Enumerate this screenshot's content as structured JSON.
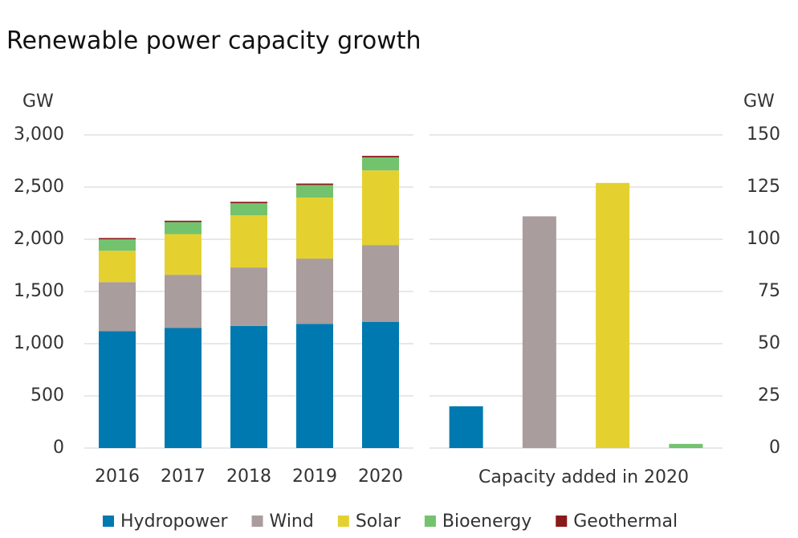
{
  "chart_data": [
    {
      "type": "stacked-bar",
      "title": "Renewable power capacity growth",
      "ylabel": "GW",
      "categories": [
        "2016",
        "2017",
        "2018",
        "2019",
        "2020"
      ],
      "series": [
        {
          "name": "Hydropower",
          "color": "#0079b0",
          "values": [
            1120,
            1150,
            1170,
            1190,
            1210
          ]
        },
        {
          "name": "Wind",
          "color": "#aa9d9e",
          "values": [
            470,
            510,
            560,
            625,
            735
          ]
        },
        {
          "name": "Solar",
          "color": "#e4d130",
          "values": [
            300,
            390,
            500,
            585,
            715
          ]
        },
        {
          "name": "Bioenergy",
          "color": "#73c26d",
          "values": [
            110,
            115,
            115,
            120,
            125
          ]
        },
        {
          "name": "Geothermal",
          "color": "#8b1a1a",
          "values": [
            12,
            13,
            14,
            14,
            14
          ]
        }
      ],
      "ylim": [
        0,
        3000
      ],
      "yticks": [
        0,
        500,
        {
          "value": 1000,
          "label": "1,000"
        },
        {
          "value": 1500,
          "label": "1,500"
        },
        {
          "value": 2000,
          "label": "2,000"
        },
        {
          "value": 2500,
          "label": "2,500"
        },
        {
          "value": 3000,
          "label": "3,000"
        }
      ],
      "grid": true,
      "legend": "bottom"
    },
    {
      "type": "bar",
      "ylabel": "GW",
      "xlabel": "Capacity added in 2020",
      "categories": [
        null,
        null,
        null,
        null
      ],
      "values": [
        20,
        111,
        127,
        2
      ],
      "colors": [
        "#0079b0",
        "#aa9d9e",
        "#e4d130",
        "#73c26d"
      ],
      "ylim": [
        0,
        150
      ],
      "yticks": [
        0,
        25,
        50,
        75,
        100,
        125,
        150
      ],
      "axis_side": "right",
      "grid": true
    }
  ]
}
